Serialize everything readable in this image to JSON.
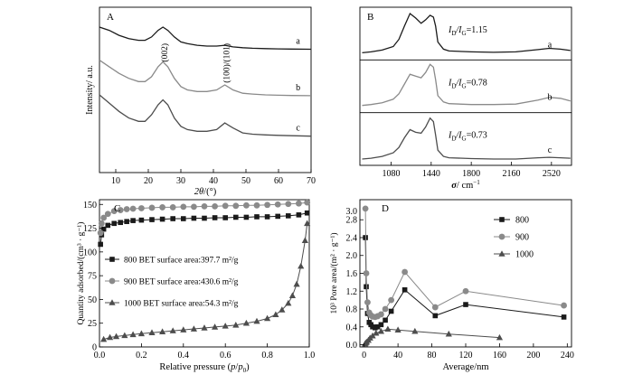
{
  "chart_data": [
    {
      "panel": "A",
      "type": "line",
      "xlabel_italic": "2θ",
      "xlabel_rest": "/(°)",
      "ylabel": "Intensity/ a.u.",
      "xlim": [
        5,
        70
      ],
      "xticks": [
        10,
        20,
        30,
        40,
        50,
        60,
        70
      ],
      "peak_labels": [
        {
          "text": "(002)",
          "x": 25
        },
        {
          "text": "(100)/(101)",
          "x": 44
        }
      ],
      "series": [
        {
          "name": "a",
          "color": "#1a1a1a",
          "x": [
            5,
            8,
            11,
            14,
            17,
            19,
            21,
            23,
            24.5,
            26,
            28,
            30,
            32,
            35,
            38,
            41,
            43.5,
            46,
            49,
            52,
            56,
            60,
            64,
            70
          ],
          "y": [
            88,
            86,
            83,
            81,
            80,
            80,
            82,
            86,
            88,
            86,
            82,
            79,
            78,
            77,
            76.5,
            76.5,
            77,
            76,
            75.5,
            75.2,
            75,
            74.8,
            74.7,
            74.6
          ]
        },
        {
          "name": "b",
          "color": "#8a8a8a",
          "x": [
            5,
            8,
            11,
            14,
            17,
            19,
            21,
            23,
            24.5,
            26,
            28,
            30,
            32,
            35,
            38,
            41,
            43.5,
            46,
            49,
            52,
            56,
            60,
            64,
            70
          ],
          "y": [
            68,
            64,
            60,
            57,
            55,
            55,
            58,
            64,
            67,
            64,
            57,
            52,
            50,
            49,
            49,
            50,
            53,
            50,
            48,
            47.5,
            47,
            46.8,
            46.6,
            46.5
          ]
        },
        {
          "name": "c",
          "color": "#4d4d4d",
          "x": [
            5,
            8,
            11,
            14,
            17,
            19,
            21,
            23,
            24.5,
            26,
            28,
            30,
            32,
            35,
            38,
            41,
            43.5,
            46,
            49,
            52,
            56,
            60,
            64,
            70
          ],
          "y": [
            47,
            42,
            37,
            33,
            31,
            31,
            35,
            41,
            44,
            41,
            33,
            28,
            26,
            25,
            25,
            26,
            30,
            27,
            24,
            23.2,
            22.8,
            22.5,
            22.3,
            22
          ]
        }
      ],
      "series_labels": [
        "a",
        "b",
        "c"
      ]
    },
    {
      "panel": "B",
      "type": "line",
      "xlabel_italic": "σ",
      "xlabel_rest": "/ cm",
      "xlabel_sup": "−1",
      "xlim": [
        800,
        2700
      ],
      "xticks": [
        1080,
        1440,
        1800,
        2160,
        2520
      ],
      "series": [
        {
          "name": "a",
          "color": "#1a1a1a",
          "ratio_label": "I",
          "ratio_sub1": "D",
          "ratio_mid": "/I",
          "ratio_sub2": "G",
          "ratio_value": "=1.15",
          "x": [
            820,
            900,
            1000,
            1100,
            1150,
            1200,
            1250,
            1300,
            1350,
            1390,
            1430,
            1460,
            1480,
            1500,
            1550,
            1600,
            1800,
            2000,
            2200,
            2400,
            2500,
            2600,
            2690
          ],
          "y": [
            0.08,
            0.1,
            0.14,
            0.22,
            0.38,
            0.68,
            0.96,
            0.86,
            0.74,
            0.82,
            0.92,
            0.88,
            0.68,
            0.32,
            0.16,
            0.12,
            0.1,
            0.09,
            0.1,
            0.15,
            0.18,
            0.16,
            0.13
          ]
        },
        {
          "name": "b",
          "color": "#8a8a8a",
          "ratio_label": "I",
          "ratio_sub1": "D",
          "ratio_mid": "/I",
          "ratio_sub2": "G",
          "ratio_value": "=0.78",
          "x": [
            820,
            900,
            1000,
            1100,
            1150,
            1200,
            1250,
            1300,
            1350,
            1390,
            1430,
            1460,
            1480,
            1500,
            1550,
            1600,
            1800,
            2000,
            2200,
            2400,
            2500,
            2600,
            2690
          ],
          "y": [
            0.08,
            0.1,
            0.14,
            0.22,
            0.34,
            0.56,
            0.78,
            0.74,
            0.7,
            0.82,
            1.0,
            0.94,
            0.66,
            0.3,
            0.16,
            0.12,
            0.1,
            0.1,
            0.11,
            0.2,
            0.26,
            0.24,
            0.18
          ]
        },
        {
          "name": "c",
          "color": "#4d4d4d",
          "ratio_label": "I",
          "ratio_sub1": "D",
          "ratio_mid": "/I",
          "ratio_sub2": "G",
          "ratio_value": "=0.73",
          "x": [
            820,
            900,
            1000,
            1100,
            1150,
            1200,
            1250,
            1300,
            1350,
            1390,
            1430,
            1460,
            1480,
            1500,
            1550,
            1600,
            1800,
            2000,
            2200,
            2400,
            2500,
            2600,
            2690
          ],
          "y": [
            0.06,
            0.08,
            0.12,
            0.2,
            0.32,
            0.54,
            0.72,
            0.66,
            0.64,
            0.78,
            0.98,
            0.9,
            0.6,
            0.26,
            0.12,
            0.09,
            0.07,
            0.06,
            0.06,
            0.09,
            0.1,
            0.09,
            0.08
          ]
        }
      ]
    },
    {
      "panel": "C",
      "type": "line",
      "xlabel_pre": "Relative pressure (",
      "xlabel_italic": "p",
      "xlabel_slash": "/",
      "xlabel_italic2": "p",
      "xlabel_sub": "0",
      "xlabel_post": ")",
      "ylabel": "Quantity adsorbed/(cm³ · g⁻¹)",
      "xlim": [
        0,
        1
      ],
      "ylim": [
        0,
        155
      ],
      "xticks": [
        0.0,
        0.2,
        0.4,
        0.6,
        0.8,
        1.0
      ],
      "xtick_labels": [
        "0.0",
        "0.2",
        "0.4",
        "0.6",
        "0.8",
        "1.0"
      ],
      "yticks": [
        0,
        25,
        50,
        75,
        100,
        125,
        150
      ],
      "legend": [
        {
          "marker": "square",
          "text": "800 BET surface area:397.7 m²/g"
        },
        {
          "marker": "circle",
          "text": "900 BET surface area:430.6 m²/g"
        },
        {
          "marker": "triangle",
          "text": "1000 BET surface area:54.3 m²/g"
        }
      ],
      "series": [
        {
          "name": "800",
          "marker": "square",
          "color": "#1a1a1a",
          "x": [
            0.005,
            0.01,
            0.02,
            0.04,
            0.07,
            0.1,
            0.13,
            0.16,
            0.2,
            0.25,
            0.3,
            0.35,
            0.4,
            0.45,
            0.5,
            0.55,
            0.6,
            0.65,
            0.7,
            0.75,
            0.8,
            0.85,
            0.9,
            0.95,
            0.99
          ],
          "y": [
            108,
            118,
            124,
            128,
            130,
            131,
            132,
            133,
            133.5,
            134,
            134.5,
            135,
            135,
            135.5,
            135.5,
            136,
            136,
            136.5,
            136.5,
            137,
            137,
            137.5,
            138,
            139,
            141
          ]
        },
        {
          "name": "900",
          "marker": "circle",
          "color": "#8a8a8a",
          "x": [
            0.005,
            0.01,
            0.02,
            0.04,
            0.07,
            0.1,
            0.13,
            0.16,
            0.2,
            0.25,
            0.3,
            0.35,
            0.4,
            0.45,
            0.5,
            0.55,
            0.6,
            0.65,
            0.7,
            0.75,
            0.8,
            0.85,
            0.9,
            0.95,
            0.99
          ],
          "y": [
            120,
            130,
            136,
            140,
            143,
            144,
            145,
            145.5,
            146,
            146.5,
            147,
            147,
            147.5,
            147.5,
            148,
            148,
            148.5,
            148.5,
            149,
            149,
            149.5,
            150,
            150.5,
            151,
            152
          ]
        },
        {
          "name": "1000",
          "marker": "triangle",
          "color": "#4d4d4d",
          "x": [
            0.02,
            0.05,
            0.08,
            0.12,
            0.16,
            0.2,
            0.25,
            0.3,
            0.35,
            0.4,
            0.45,
            0.5,
            0.55,
            0.6,
            0.65,
            0.7,
            0.75,
            0.8,
            0.84,
            0.87,
            0.9,
            0.92,
            0.94,
            0.96,
            0.98,
            0.99
          ],
          "y": [
            8,
            10,
            11,
            12,
            13,
            14,
            15,
            16,
            17,
            18,
            19,
            20,
            21,
            22,
            23,
            25,
            27,
            30,
            34,
            39,
            46,
            54,
            66,
            85,
            112,
            130
          ]
        }
      ]
    },
    {
      "panel": "D",
      "type": "line",
      "xlabel": "Average/nm",
      "ylabel": "10³ Pore area/(m² · g⁻¹)",
      "xlim": [
        -5,
        245
      ],
      "ylim": [
        -0.05,
        3.25
      ],
      "xticks": [
        0,
        40,
        80,
        120,
        160,
        200,
        240
      ],
      "yticks": [
        0.0,
        0.4,
        0.8,
        1.2,
        1.6,
        2.0,
        2.4,
        2.8
      ],
      "ytick_labels": [
        "0.0",
        "0.4",
        "0.8",
        "1.2",
        "1.6",
        "2.0",
        "2.4",
        "2.8"
      ],
      "ytick_top_label": "3.0",
      "legend": [
        {
          "marker": "square",
          "text": "800"
        },
        {
          "marker": "circle",
          "text": "900"
        },
        {
          "marker": "triangle",
          "text": "1000"
        }
      ],
      "series": [
        {
          "name": "800",
          "marker": "square",
          "color": "#1a1a1a",
          "x": [
            1.5,
            2.5,
            4,
            6,
            8,
            10,
            13,
            16,
            20,
            25,
            32,
            48,
            84,
            120,
            236
          ],
          "y": [
            2.4,
            1.3,
            0.7,
            0.5,
            0.45,
            0.4,
            0.38,
            0.4,
            0.45,
            0.55,
            0.75,
            1.23,
            0.65,
            0.9,
            0.62
          ]
        },
        {
          "name": "900",
          "marker": "circle",
          "color": "#8a8a8a",
          "x": [
            1.5,
            2.5,
            4,
            6,
            8,
            10,
            13,
            16,
            20,
            25,
            32,
            48,
            84,
            120,
            236
          ],
          "y": [
            3.05,
            1.6,
            0.95,
            0.72,
            0.66,
            0.63,
            0.62,
            0.64,
            0.68,
            0.8,
            1.0,
            1.63,
            0.84,
            1.2,
            0.88
          ]
        },
        {
          "name": "1000",
          "marker": "triangle",
          "color": "#4d4d4d",
          "x": [
            1,
            2,
            3,
            5,
            7,
            10,
            14,
            20,
            28,
            40,
            60,
            100,
            160
          ],
          "y": [
            0.02,
            0.04,
            0.06,
            0.1,
            0.15,
            0.2,
            0.26,
            0.3,
            0.35,
            0.33,
            0.3,
            0.24,
            0.16
          ]
        }
      ]
    }
  ]
}
